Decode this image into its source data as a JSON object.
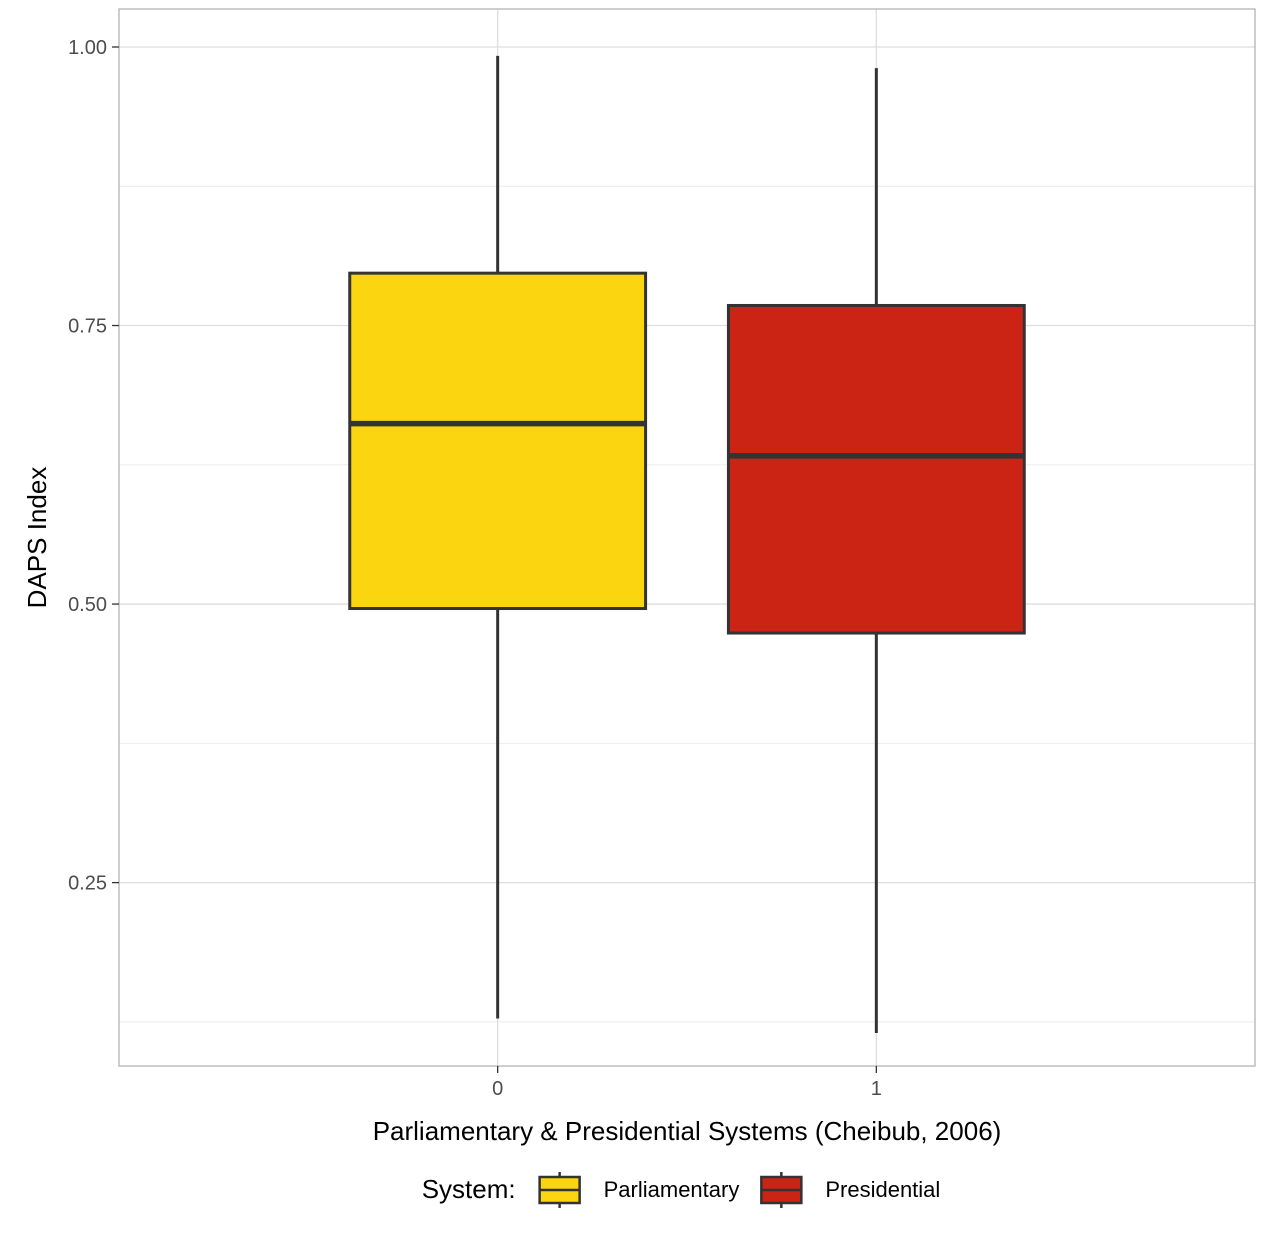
{
  "chart_data": {
    "type": "box",
    "xlabel": "Parliamentary & Presidential Systems (Cheibub, 2006)",
    "ylabel": "DAPS Index",
    "ylim": [
      0.0854,
      1.0341
    ],
    "yticks": [
      0.25,
      0.5,
      0.75,
      1.0
    ],
    "ytick_labels": [
      "0.25",
      "0.50",
      "0.75",
      "1.00"
    ],
    "grid": true,
    "legend": {
      "title": "System:",
      "position": "bottom",
      "entries": [
        {
          "label": "Parliamentary",
          "color": "#FAD510"
        },
        {
          "label": "Presidential",
          "color": "#CB2314"
        }
      ]
    },
    "categories": [
      "0",
      "1"
    ],
    "boxes": [
      {
        "category": "0",
        "min": 0.128,
        "q1": 0.496,
        "median": 0.662,
        "q3": 0.797,
        "max": 0.992,
        "color": "#FAD510"
      },
      {
        "category": "1",
        "min": 0.115,
        "q1": 0.474,
        "median": 0.633,
        "q3": 0.768,
        "max": 0.981,
        "color": "#CB2314"
      }
    ]
  }
}
